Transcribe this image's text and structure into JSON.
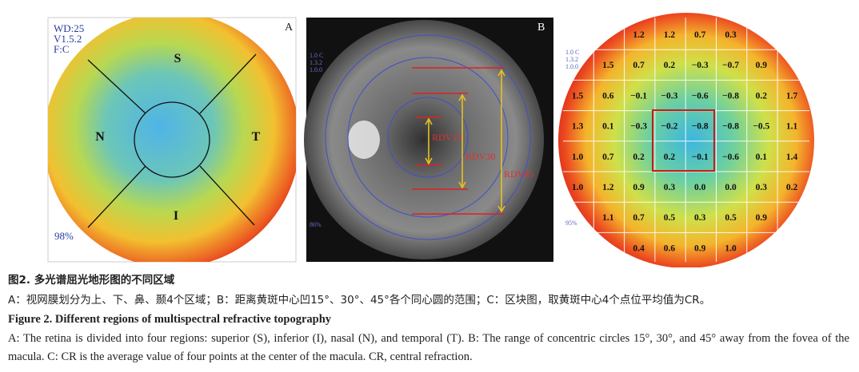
{
  "panel_a": {
    "label": "A",
    "info": [
      "WD:25",
      "V1.5.2",
      "F:C"
    ],
    "quality": "98%",
    "regions": {
      "superior": "S",
      "nasal": "N",
      "temporal": "T",
      "inferior": "I"
    }
  },
  "panel_b": {
    "label": "B",
    "info": [
      "1.0 C",
      "1.3.2",
      "1.0.0"
    ],
    "quality": "86%",
    "rings": [
      "RDV15",
      "RDV30",
      "RDV45"
    ]
  },
  "panel_c": {
    "label": "C",
    "info": [
      "1.0 C",
      "1.3.2",
      "1.0.0"
    ],
    "quality": "95%",
    "grid": [
      [
        null,
        null,
        "1.2",
        "1.2",
        "0.7",
        "0.3",
        null,
        null
      ],
      [
        null,
        "1.5",
        "0.7",
        "0.2",
        "−0.3",
        "−0.7",
        "0.9",
        null
      ],
      [
        "1.5",
        "0.6",
        "−0.1",
        "−0.3",
        "−0.6",
        "−0.8",
        "0.2",
        "1.7"
      ],
      [
        "1.3",
        "0.1",
        "−0.3",
        "−0.2",
        "−0.8",
        "−0.8",
        "−0.5",
        "1.1"
      ],
      [
        "1.0",
        "0.7",
        "0.2",
        "0.2",
        "−0.1",
        "−0.6",
        "0.1",
        "1.4"
      ],
      [
        "1.0",
        "1.2",
        "0.9",
        "0.3",
        "0.0",
        "0.0",
        "0.3",
        "0.2"
      ],
      [
        null,
        "1.1",
        "0.7",
        "0.5",
        "0.3",
        "0.5",
        "0.9",
        null
      ],
      [
        null,
        null,
        "0.4",
        "0.6",
        "0.9",
        "1.0",
        null,
        null
      ]
    ]
  },
  "caption": {
    "zh_title": "图2.  多光谱屈光地形图的不同区域",
    "zh_text": "A：视网膜划分为上、下、鼻、颞4个区域；B：距离黄斑中心凹15°、30°、45°各个同心圆的范围；C：区块图，取黄斑中心4个点位平均值为CR。",
    "en_title": "Figure 2.   Different regions of multispectral refractive topography",
    "en_text": "A: The retina is divided into four regions: superior (S), inferior (I), nasal (N), and temporal (T). B: The range of concentric circles 15°, 30°, and 45° away from the fovea of the macula. C: CR is the average value of four points at the center of the macula. CR, central refraction."
  }
}
